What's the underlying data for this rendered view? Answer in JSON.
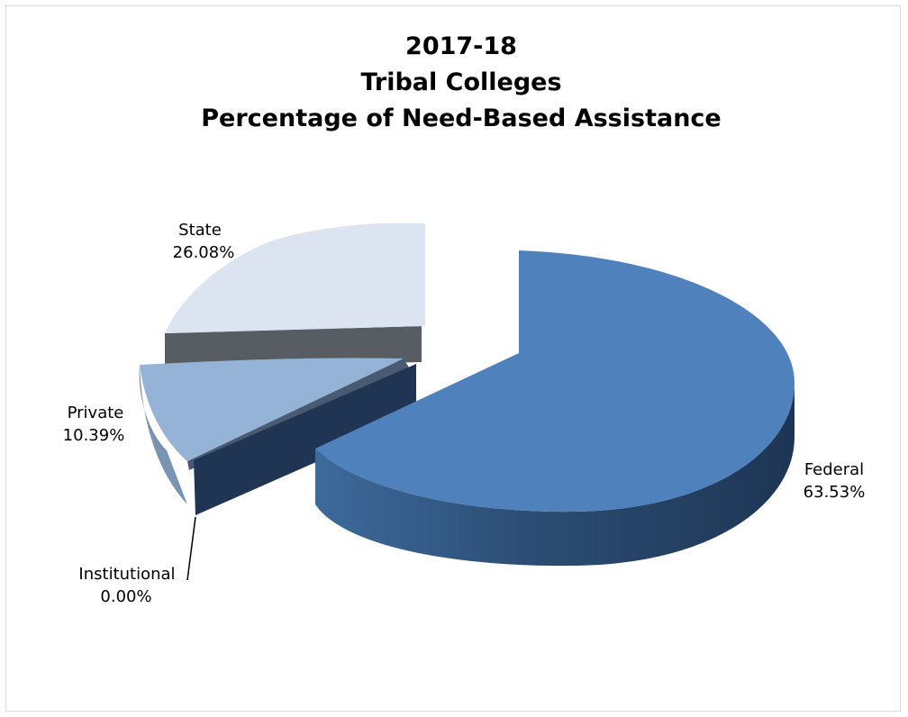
{
  "chart_data": {
    "type": "pie",
    "style": "3d-exploded",
    "title_lines": [
      "2017-18",
      "Tribal Colleges",
      "Percentage of Need-Based Assistance"
    ],
    "slices": [
      {
        "name": "Federal",
        "value": 63.53,
        "label": "63.53%",
        "color": "#4f81bd"
      },
      {
        "name": "Institutional",
        "value": 0.0,
        "label": "0.00%",
        "color": "#1f3553"
      },
      {
        "name": "Private",
        "value": 10.39,
        "label": "10.39%",
        "color": "#95b3d7"
      },
      {
        "name": "State",
        "value": 26.08,
        "label": "26.08%",
        "color": "#dbe4f0"
      }
    ],
    "legend": "none"
  }
}
